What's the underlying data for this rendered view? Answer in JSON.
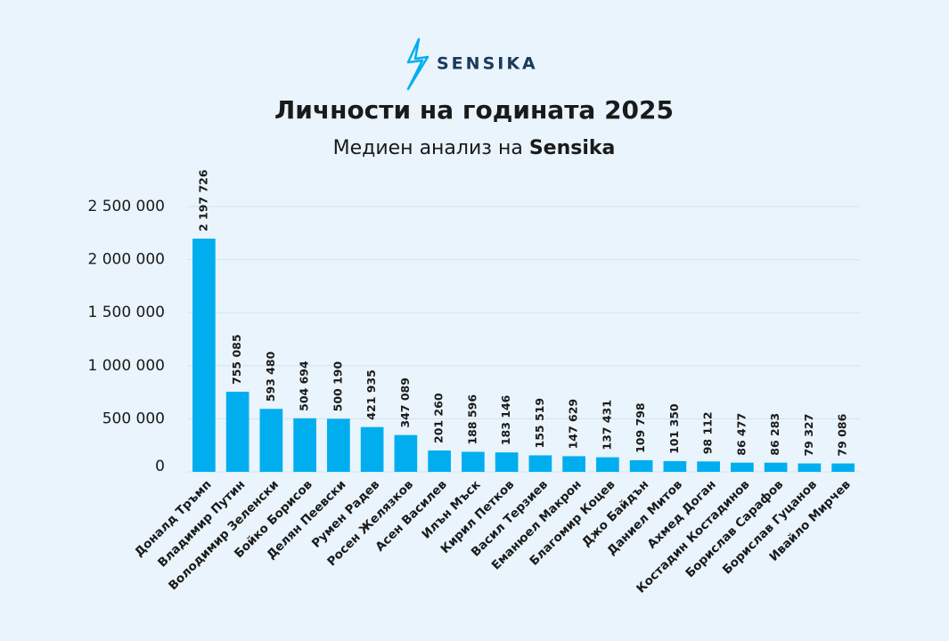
{
  "logo": "SENSIKA",
  "chart_data": {
    "type": "bar",
    "title": "Личности на годината 2025",
    "subtitle": "Медиен анализ на",
    "subtitle_brand": "Sensika",
    "categories": [
      "Доналд Тръмп",
      "Владимир Путин",
      "Володимир Зеленски",
      "Бойко Борисов",
      "Делян Пеевски",
      "Румен Радев",
      "Росен Желязков",
      "Асен Василев",
      "Илън Мъск",
      "Кирил Петков",
      "Васил Терзиев",
      "Еманюел Макрон",
      "Благомир Коцев",
      "Джо Байдън",
      "Даниел Митов",
      "Ахмед Доган",
      "Костадин Костадинов",
      "Борислав Сарафов",
      "Борислав Гуцанов",
      "Ивайло Мирчев"
    ],
    "values": [
      2197726,
      755085,
      593480,
      504694,
      500190,
      421935,
      347089,
      201260,
      188596,
      183146,
      155519,
      147629,
      137431,
      109798,
      101350,
      98112,
      86477,
      86283,
      79327,
      79086
    ],
    "value_labels": [
      "2 197 726",
      "755 085",
      "593 480",
      "504 694",
      "500 190",
      "421 935",
      "347 089",
      "201 260",
      "188 596",
      "183 146",
      "155 519",
      "147 629",
      "137 431",
      "109 798",
      "101 350",
      "98 112",
      "86 477",
      "86 283",
      "79 327",
      "79 086"
    ],
    "color": "#00aeef",
    "ylim": [
      0,
      2500000
    ],
    "yticks": [
      0,
      {
        "value": 500000,
        "label": "500 000"
      },
      {
        "value": 1000000,
        "label": "1 000 000"
      },
      {
        "value": 1500000,
        "label": "1 500 000"
      },
      {
        "value": 2000000,
        "label": "2 000 000"
      },
      {
        "value": 2500000,
        "label": "2 500 000"
      }
    ],
    "grid": true
  }
}
